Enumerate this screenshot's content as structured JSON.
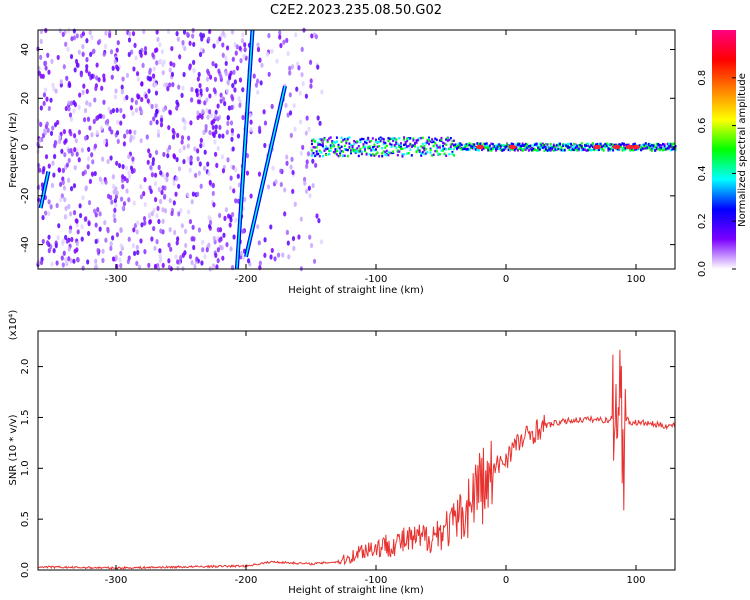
{
  "page_title": "C2E2.2023.235.08.50.G02",
  "chart_data": [
    {
      "type": "heatmap",
      "xlabel": "Height of straight line (km)",
      "ylabel": "Frequency (Hz)",
      "xlim": [
        -360,
        130
      ],
      "ylim": [
        -50,
        48
      ],
      "x_ticks": [
        -300,
        -200,
        -100,
        0,
        100
      ],
      "y_ticks": [
        -40,
        -20,
        0,
        20,
        40
      ],
      "colorbar": {
        "label": "Normalized spectral amplitude",
        "range": [
          0.0,
          1.0
        ],
        "ticks": [
          "0.0",
          "0.2",
          "0.4",
          "0.6",
          "0.8"
        ],
        "colors": [
          "#ffffff",
          "#7a00ff",
          "#0000ff",
          "#00ffff",
          "#00ff00",
          "#ffff00",
          "#ff8000",
          "#ff0000",
          "#ff0080"
        ]
      },
      "features": {
        "noise_region_x": [
          -360,
          -140
        ],
        "carrier_line_x": [
          -150,
          130
        ],
        "carrier_freq": 0,
        "slanted_traces": [
          {
            "x": [
              -207,
              -195
            ],
            "y": [
              -50,
              48
            ]
          },
          {
            "x": [
              -200,
              -170
            ],
            "y": [
              -45,
              25
            ]
          },
          {
            "x": [
              -358,
              -352
            ],
            "y": [
              -25,
              -10
            ]
          }
        ]
      }
    },
    {
      "type": "line",
      "xlabel": "Height of straight line (km)",
      "ylabel": "SNR (10 * v/v)",
      "y_scale_label": "(x10⁴)",
      "xlim": [
        -360,
        130
      ],
      "ylim": [
        0,
        2.35
      ],
      "x_ticks": [
        -300,
        -200,
        -100,
        0,
        100
      ],
      "y_ticks": [
        "0.0",
        "0.5",
        "1.0",
        "1.5",
        "2.0"
      ],
      "series": [
        {
          "color": "#e8322f",
          "x": [
            -360,
            -300,
            -250,
            -200,
            -180,
            -150,
            -130,
            -120,
            -110,
            -100,
            -90,
            -80,
            -70,
            -60,
            -50,
            -40,
            -30,
            -25,
            -20,
            -15,
            -10,
            -5,
            0,
            5,
            10,
            20,
            30,
            40,
            50,
            60,
            70,
            80,
            85,
            88,
            90,
            92,
            95,
            100,
            110,
            120,
            130
          ],
          "y": [
            0.03,
            0.02,
            0.03,
            0.04,
            0.08,
            0.06,
            0.08,
            0.12,
            0.2,
            0.22,
            0.25,
            0.28,
            0.3,
            0.32,
            0.38,
            0.45,
            0.6,
            0.75,
            0.85,
            0.82,
            0.95,
            1.05,
            1.1,
            1.2,
            1.25,
            1.35,
            1.42,
            1.45,
            1.47,
            1.48,
            1.48,
            1.47,
            1.6,
            2.0,
            1.0,
            1.5,
            1.45,
            1.45,
            1.44,
            1.42,
            1.42
          ]
        }
      ]
    }
  ]
}
